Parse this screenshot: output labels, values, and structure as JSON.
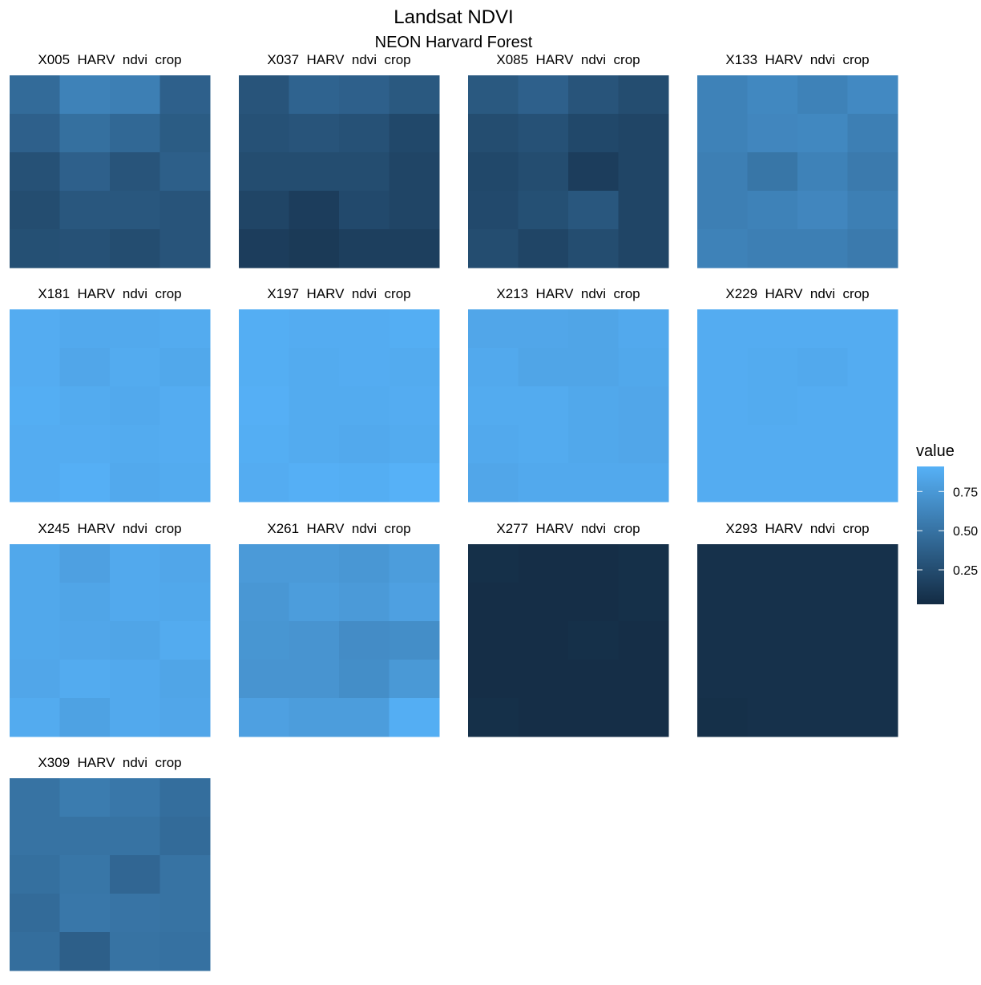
{
  "chart_data": {
    "type": "heatmap",
    "title": "Landsat NDVI",
    "subtitle": "NEON Harvard Forest",
    "color_low": "#132B43",
    "color_high": "#56B1F7",
    "clim": [
      0.03,
      0.91
    ],
    "legend_title": "value",
    "legend_ticks": [
      0.25,
      {
        "value": 0.5,
        "label": "0.50"
      },
      0.75
    ],
    "panels": [
      {
        "name": "X005  HARV  ndvi  crop",
        "values": [
          [
            0.45,
            0.6,
            0.58,
            0.38
          ],
          [
            0.38,
            0.48,
            0.43,
            0.35
          ],
          [
            0.28,
            0.38,
            0.3,
            0.37
          ],
          [
            0.25,
            0.32,
            0.32,
            0.3
          ],
          [
            0.27,
            0.28,
            0.25,
            0.3
          ]
        ]
      },
      {
        "name": "X037  HARV  ndvi  crop",
        "values": [
          [
            0.3,
            0.4,
            0.38,
            0.33
          ],
          [
            0.28,
            0.3,
            0.28,
            0.22
          ],
          [
            0.25,
            0.25,
            0.25,
            0.2
          ],
          [
            0.2,
            0.15,
            0.23,
            0.2
          ],
          [
            0.15,
            0.13,
            0.16,
            0.16
          ]
        ]
      },
      {
        "name": "X085  HARV  ndvi  crop",
        "values": [
          [
            0.33,
            0.38,
            0.3,
            0.25
          ],
          [
            0.25,
            0.28,
            0.22,
            0.2
          ],
          [
            0.22,
            0.25,
            0.15,
            0.2
          ],
          [
            0.23,
            0.27,
            0.32,
            0.2
          ],
          [
            0.25,
            0.2,
            0.25,
            0.2
          ]
        ]
      },
      {
        "name": "X133  HARV  ndvi  crop",
        "values": [
          [
            0.6,
            0.64,
            0.6,
            0.65
          ],
          [
            0.6,
            0.63,
            0.64,
            0.58
          ],
          [
            0.58,
            0.52,
            0.6,
            0.55
          ],
          [
            0.58,
            0.6,
            0.63,
            0.58
          ],
          [
            0.6,
            0.58,
            0.58,
            0.55
          ]
        ]
      },
      {
        "name": "X181  HARV  ndvi  crop",
        "values": [
          [
            0.88,
            0.86,
            0.86,
            0.87
          ],
          [
            0.88,
            0.84,
            0.87,
            0.85
          ],
          [
            0.89,
            0.87,
            0.86,
            0.88
          ],
          [
            0.88,
            0.88,
            0.87,
            0.88
          ],
          [
            0.88,
            0.9,
            0.86,
            0.87
          ]
        ]
      },
      {
        "name": "X197  HARV  ndvi  crop",
        "values": [
          [
            0.89,
            0.88,
            0.88,
            0.89
          ],
          [
            0.89,
            0.87,
            0.88,
            0.87
          ],
          [
            0.9,
            0.87,
            0.87,
            0.88
          ],
          [
            0.89,
            0.87,
            0.86,
            0.87
          ],
          [
            0.88,
            0.9,
            0.89,
            0.91
          ]
        ]
      },
      {
        "name": "X213  HARV  ndvi  crop",
        "values": [
          [
            0.84,
            0.84,
            0.83,
            0.86
          ],
          [
            0.86,
            0.83,
            0.83,
            0.85
          ],
          [
            0.87,
            0.87,
            0.85,
            0.84
          ],
          [
            0.86,
            0.87,
            0.85,
            0.84
          ],
          [
            0.84,
            0.86,
            0.86,
            0.86
          ]
        ]
      },
      {
        "name": "X229  HARV  ndvi  crop",
        "values": [
          [
            0.88,
            0.88,
            0.88,
            0.88
          ],
          [
            0.88,
            0.87,
            0.86,
            0.88
          ],
          [
            0.88,
            0.87,
            0.88,
            0.88
          ],
          [
            0.88,
            0.88,
            0.88,
            0.88
          ],
          [
            0.88,
            0.88,
            0.88,
            0.88
          ]
        ]
      },
      {
        "name": "X245  HARV  ndvi  crop",
        "values": [
          [
            0.85,
            0.8,
            0.86,
            0.84
          ],
          [
            0.85,
            0.83,
            0.86,
            0.85
          ],
          [
            0.85,
            0.84,
            0.83,
            0.87
          ],
          [
            0.84,
            0.87,
            0.86,
            0.83
          ],
          [
            0.87,
            0.81,
            0.86,
            0.84
          ]
        ]
      },
      {
        "name": "X261  HARV  ndvi  crop",
        "values": [
          [
            0.76,
            0.76,
            0.74,
            0.78
          ],
          [
            0.74,
            0.78,
            0.76,
            0.8
          ],
          [
            0.73,
            0.72,
            0.67,
            0.68
          ],
          [
            0.72,
            0.72,
            0.68,
            0.75
          ],
          [
            0.8,
            0.78,
            0.78,
            0.89
          ]
        ]
      },
      {
        "name": "X277  HARV  ndvi  crop",
        "values": [
          [
            0.06,
            0.05,
            0.05,
            0.06
          ],
          [
            0.05,
            0.05,
            0.05,
            0.06
          ],
          [
            0.05,
            0.05,
            0.06,
            0.05
          ],
          [
            0.05,
            0.05,
            0.05,
            0.05
          ],
          [
            0.06,
            0.05,
            0.05,
            0.05
          ]
        ]
      },
      {
        "name": "X293  HARV  ndvi  crop",
        "values": [
          [
            0.07,
            0.07,
            0.07,
            0.07
          ],
          [
            0.07,
            0.07,
            0.07,
            0.07
          ],
          [
            0.07,
            0.07,
            0.07,
            0.07
          ],
          [
            0.07,
            0.07,
            0.07,
            0.07
          ],
          [
            0.06,
            0.07,
            0.07,
            0.07
          ]
        ]
      },
      {
        "name": "X309  HARV  ndvi  crop",
        "values": [
          [
            0.5,
            0.56,
            0.53,
            0.47
          ],
          [
            0.5,
            0.5,
            0.5,
            0.45
          ],
          [
            0.48,
            0.52,
            0.42,
            0.5
          ],
          [
            0.45,
            0.53,
            0.51,
            0.5
          ],
          [
            0.47,
            0.37,
            0.5,
            0.49
          ]
        ]
      }
    ]
  }
}
